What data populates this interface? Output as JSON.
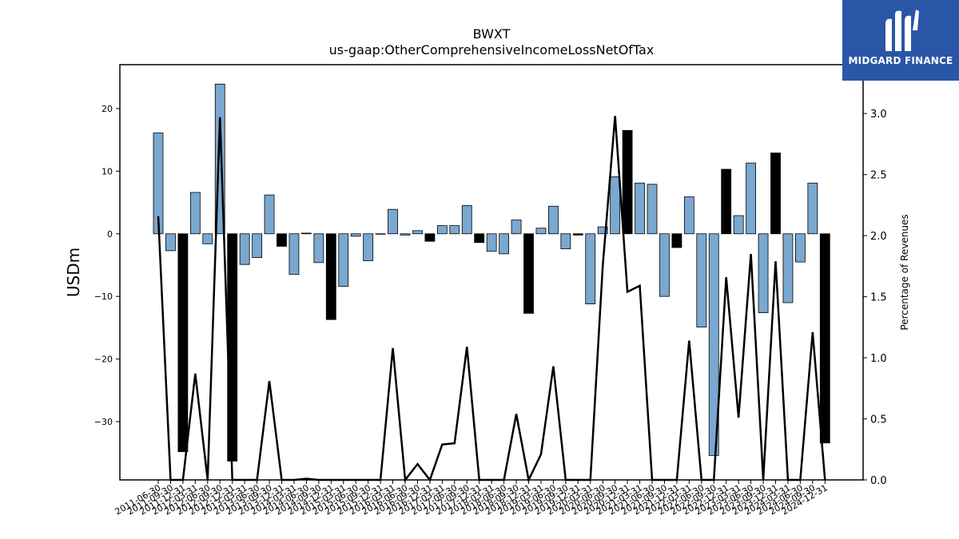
{
  "logo": {
    "text": "MIDGARD FINANCE",
    "icon": "midgard-logo-icon",
    "background": "#2a56a8"
  },
  "chart_data": {
    "type": "bar",
    "title": "BWXT",
    "subtitle": "us-gaap:OtherComprehensiveIncomeLossNetOfTax",
    "ylabel": "USDm",
    "ylabel_right": "Percentage of Revenues",
    "ylim": [
      -39.3,
      27.0
    ],
    "ylim_right": [
      0.0,
      3.4
    ],
    "yticks": [
      20,
      10,
      0,
      -10,
      -20,
      -30
    ],
    "yticks_right": [
      0.0,
      0.5,
      1.0,
      1.5,
      2.0,
      2.5,
      3.0
    ],
    "yticks_right_labels": [
      "0.0",
      "0.5",
      "1.0",
      "1.5",
      "2.0",
      "2.5",
      "3.0"
    ],
    "grid": false,
    "colors": {
      "positive_quarter": "#7aa8d0",
      "annual": "#000000",
      "line": "#000000"
    },
    "categories": [
      "2011-06-30",
      "2011-09-30",
      "2011-12-31",
      "2012-03-31",
      "2012-06-30",
      "2012-09-30",
      "2012-12-31",
      "2013-03-31",
      "2013-06-30",
      "2013-09-30",
      "2013-12-31",
      "2014-03-31",
      "2014-06-30",
      "2014-09-30",
      "2014-12-31",
      "2015-03-31",
      "2015-06-30",
      "2015-09-30",
      "2015-12-31",
      "2016-03-31",
      "2016-06-30",
      "2016-09-30",
      "2016-12-31",
      "2017-03-31",
      "2017-06-30",
      "2017-09-30",
      "2017-12-31",
      "2018-03-31",
      "2018-06-30",
      "2018-09-30",
      "2018-12-31",
      "2019-03-31",
      "2019-06-30",
      "2019-09-30",
      "2019-12-31",
      "2020-03-31",
      "2020-06-30",
      "2020-09-30",
      "2020-12-31",
      "2021-03-31",
      "2021-06-30",
      "2021-09-30",
      "2021-12-31",
      "2022-03-31",
      "2022-06-30",
      "2022-09-30",
      "2022-12-31",
      "2023-03-31",
      "2023-06-30",
      "2023-09-30",
      "2023-12-31",
      "2024-03-31",
      "2024-06-30",
      "2024-09-30",
      "2024-12-31"
    ],
    "series": [
      {
        "values": [
          16.1,
          -2.7,
          -34.8,
          6.6,
          -1.6,
          23.9,
          -36.3,
          -4.9,
          -3.8,
          6.2,
          -2.0,
          -6.5,
          0.1,
          -4.6,
          -13.7,
          -8.4,
          -0.4,
          -4.3,
          0.0,
          3.9,
          -0.2,
          0.5,
          -1.2,
          1.3,
          1.3,
          4.5,
          -1.4,
          -2.8,
          -3.2,
          2.2,
          -12.7,
          0.9,
          4.4,
          -2.4,
          -0.2,
          -11.2,
          1.1,
          9.1,
          16.5,
          8.1,
          7.9,
          -10.0,
          -2.2,
          5.9,
          -14.9,
          -35.4,
          10.3,
          2.9,
          11.3,
          -12.6,
          12.9,
          -11.0,
          -4.5,
          8.1,
          -33.4
        ]
      },
      {
        "values": [
          2.16,
          0.0,
          0.0,
          0.87,
          0.0,
          2.97,
          0.0,
          0.0,
          0.0,
          0.81,
          0.0,
          0.0,
          0.01,
          0.0,
          0.0,
          0.0,
          0.0,
          0.0,
          0.0,
          1.08,
          0.0,
          0.13,
          0.0,
          0.29,
          0.3,
          1.09,
          0.0,
          0.0,
          0.0,
          0.54,
          0.0,
          0.21,
          0.93,
          0.0,
          0.0,
          0.0,
          1.75,
          2.98,
          1.54,
          1.59,
          0.0,
          0.0,
          0.0,
          1.14,
          0.0,
          0.0,
          1.66,
          0.51,
          1.85,
          0.0,
          1.79,
          0.0,
          0.0,
          1.21,
          0.0
        ]
      }
    ],
    "annual_flags": [
      0,
      0,
      1,
      0,
      0,
      0,
      1,
      0,
      0,
      0,
      1,
      0,
      0,
      0,
      1,
      0,
      0,
      0,
      1,
      0,
      0,
      0,
      1,
      0,
      0,
      0,
      1,
      0,
      0,
      0,
      1,
      0,
      0,
      0,
      1,
      0,
      0,
      0,
      1,
      0,
      0,
      0,
      1,
      0,
      0,
      0,
      1,
      0,
      0,
      0,
      1,
      0,
      0,
      0,
      1
    ]
  }
}
